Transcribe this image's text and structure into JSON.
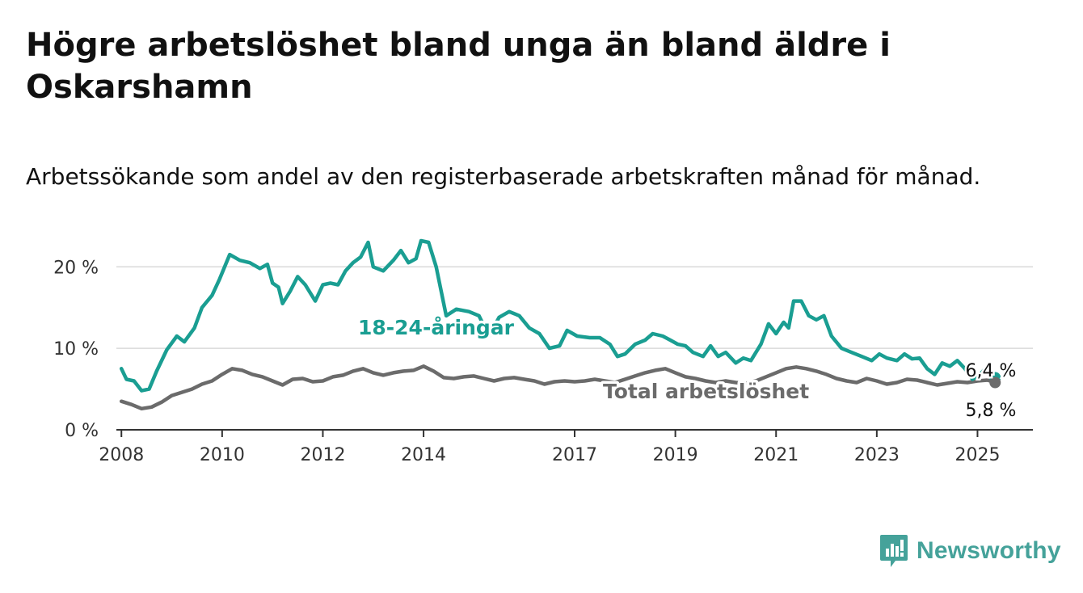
{
  "header": {
    "title": "Högre arbetslöshet bland unga än bland äldre i Oskarshamn",
    "subtitle": "Arbetssökande som andel av den registerbaserade arbetskraften månad för månad."
  },
  "brand": {
    "name": "Newsworthy",
    "icon": "newsworthy-logo-icon",
    "color": "#45a29a"
  },
  "chart_data": {
    "type": "line",
    "title": "Högre arbetslöshet bland unga än bland äldre i Oskarshamn",
    "subtitle": "Arbetssökande som andel av den registerbaserade arbetskraften månad för månad.",
    "xlabel": "",
    "ylabel": "",
    "xlim": [
      2007.9,
      2026.1
    ],
    "ylim": [
      0,
      23
    ],
    "grid": true,
    "x_ticks": [
      {
        "value": 2008,
        "label": "2008"
      },
      {
        "value": 2010,
        "label": "2010"
      },
      {
        "value": 2012,
        "label": "2012"
      },
      {
        "value": 2014,
        "label": "2014"
      },
      {
        "value": 2017,
        "label": "2017"
      },
      {
        "value": 2019,
        "label": "2019"
      },
      {
        "value": 2021,
        "label": "2021"
      },
      {
        "value": 2023,
        "label": "2023"
      },
      {
        "value": 2025,
        "label": "2025"
      }
    ],
    "y_ticks": [
      {
        "value": 0,
        "label": "0 %"
      },
      {
        "value": 10,
        "label": "10 %"
      },
      {
        "value": 20,
        "label": "20 %"
      }
    ],
    "series": [
      {
        "name": "18-24-åringar",
        "color": "#1a9e92",
        "end_label": "6,4 %",
        "points": [
          [
            2008.0,
            7.5
          ],
          [
            2008.1,
            6.2
          ],
          [
            2008.25,
            6.0
          ],
          [
            2008.4,
            4.8
          ],
          [
            2008.55,
            5.0
          ],
          [
            2008.7,
            7.2
          ],
          [
            2008.9,
            9.8
          ],
          [
            2009.1,
            11.5
          ],
          [
            2009.25,
            10.8
          ],
          [
            2009.45,
            12.5
          ],
          [
            2009.6,
            15.0
          ],
          [
            2009.8,
            16.5
          ],
          [
            2009.95,
            18.5
          ],
          [
            2010.15,
            21.5
          ],
          [
            2010.35,
            20.8
          ],
          [
            2010.55,
            20.5
          ],
          [
            2010.75,
            19.8
          ],
          [
            2010.9,
            20.3
          ],
          [
            2011.0,
            18.0
          ],
          [
            2011.12,
            17.5
          ],
          [
            2011.2,
            15.5
          ],
          [
            2011.35,
            17.0
          ],
          [
            2011.5,
            18.8
          ],
          [
            2011.65,
            17.8
          ],
          [
            2011.85,
            15.8
          ],
          [
            2012.0,
            17.8
          ],
          [
            2012.15,
            18.0
          ],
          [
            2012.3,
            17.8
          ],
          [
            2012.45,
            19.5
          ],
          [
            2012.6,
            20.5
          ],
          [
            2012.75,
            21.2
          ],
          [
            2012.9,
            23.0
          ],
          [
            2013.0,
            20.0
          ],
          [
            2013.2,
            19.5
          ],
          [
            2013.4,
            20.8
          ],
          [
            2013.55,
            22.0
          ],
          [
            2013.7,
            20.5
          ],
          [
            2013.85,
            21.0
          ],
          [
            2013.95,
            23.2
          ],
          [
            2014.1,
            23.0
          ],
          [
            2014.25,
            20.0
          ],
          [
            2014.45,
            14.0
          ],
          [
            2014.65,
            14.8
          ],
          [
            2014.9,
            14.5
          ],
          [
            2015.1,
            14.0
          ],
          [
            2015.3,
            11.5
          ],
          [
            2015.5,
            13.8
          ],
          [
            2015.7,
            14.5
          ],
          [
            2015.9,
            14.0
          ],
          [
            2016.1,
            12.5
          ],
          [
            2016.3,
            11.8
          ],
          [
            2016.5,
            10.0
          ],
          [
            2016.7,
            10.3
          ],
          [
            2016.85,
            12.2
          ],
          [
            2017.05,
            11.5
          ],
          [
            2017.3,
            11.3
          ],
          [
            2017.5,
            11.3
          ],
          [
            2017.7,
            10.5
          ],
          [
            2017.85,
            9.0
          ],
          [
            2018.0,
            9.3
          ],
          [
            2018.2,
            10.5
          ],
          [
            2018.4,
            11.0
          ],
          [
            2018.55,
            11.8
          ],
          [
            2018.75,
            11.5
          ],
          [
            2018.9,
            11.0
          ],
          [
            2019.05,
            10.5
          ],
          [
            2019.2,
            10.3
          ],
          [
            2019.35,
            9.5
          ],
          [
            2019.55,
            9.0
          ],
          [
            2019.7,
            10.3
          ],
          [
            2019.85,
            9.0
          ],
          [
            2020.0,
            9.5
          ],
          [
            2020.2,
            8.2
          ],
          [
            2020.35,
            8.8
          ],
          [
            2020.5,
            8.5
          ],
          [
            2020.7,
            10.5
          ],
          [
            2020.85,
            13.0
          ],
          [
            2021.0,
            11.8
          ],
          [
            2021.15,
            13.2
          ],
          [
            2021.25,
            12.5
          ],
          [
            2021.35,
            15.8
          ],
          [
            2021.5,
            15.8
          ],
          [
            2021.65,
            14.0
          ],
          [
            2021.8,
            13.5
          ],
          [
            2021.95,
            14.0
          ],
          [
            2022.1,
            11.5
          ],
          [
            2022.3,
            10.0
          ],
          [
            2022.5,
            9.5
          ],
          [
            2022.7,
            9.0
          ],
          [
            2022.9,
            8.5
          ],
          [
            2023.05,
            9.3
          ],
          [
            2023.2,
            8.8
          ],
          [
            2023.4,
            8.5
          ],
          [
            2023.55,
            9.3
          ],
          [
            2023.7,
            8.7
          ],
          [
            2023.85,
            8.8
          ],
          [
            2024.0,
            7.5
          ],
          [
            2024.15,
            6.8
          ],
          [
            2024.3,
            8.2
          ],
          [
            2024.45,
            7.8
          ],
          [
            2024.6,
            8.5
          ],
          [
            2024.75,
            7.5
          ],
          [
            2024.9,
            6.2
          ],
          [
            2025.05,
            6.8
          ],
          [
            2025.2,
            7.8
          ],
          [
            2025.35,
            6.4
          ]
        ]
      },
      {
        "name": "Total arbetslöshet",
        "color": "#6b6b6b",
        "end_label": "5,8 %",
        "points": [
          [
            2008.0,
            3.5
          ],
          [
            2008.2,
            3.1
          ],
          [
            2008.4,
            2.6
          ],
          [
            2008.6,
            2.8
          ],
          [
            2008.8,
            3.4
          ],
          [
            2009.0,
            4.2
          ],
          [
            2009.2,
            4.6
          ],
          [
            2009.4,
            5.0
          ],
          [
            2009.6,
            5.6
          ],
          [
            2009.8,
            6.0
          ],
          [
            2010.0,
            6.8
          ],
          [
            2010.2,
            7.5
          ],
          [
            2010.4,
            7.3
          ],
          [
            2010.6,
            6.8
          ],
          [
            2010.8,
            6.5
          ],
          [
            2011.0,
            6.0
          ],
          [
            2011.2,
            5.5
          ],
          [
            2011.4,
            6.2
          ],
          [
            2011.6,
            6.3
          ],
          [
            2011.8,
            5.9
          ],
          [
            2012.0,
            6.0
          ],
          [
            2012.2,
            6.5
          ],
          [
            2012.4,
            6.7
          ],
          [
            2012.6,
            7.2
          ],
          [
            2012.8,
            7.5
          ],
          [
            2013.0,
            7.0
          ],
          [
            2013.2,
            6.7
          ],
          [
            2013.4,
            7.0
          ],
          [
            2013.6,
            7.2
          ],
          [
            2013.8,
            7.3
          ],
          [
            2014.0,
            7.8
          ],
          [
            2014.2,
            7.2
          ],
          [
            2014.4,
            6.4
          ],
          [
            2014.6,
            6.3
          ],
          [
            2014.8,
            6.5
          ],
          [
            2015.0,
            6.6
          ],
          [
            2015.2,
            6.3
          ],
          [
            2015.4,
            6.0
          ],
          [
            2015.6,
            6.3
          ],
          [
            2015.8,
            6.4
          ],
          [
            2016.0,
            6.2
          ],
          [
            2016.2,
            6.0
          ],
          [
            2016.4,
            5.6
          ],
          [
            2016.6,
            5.9
          ],
          [
            2016.8,
            6.0
          ],
          [
            2017.0,
            5.9
          ],
          [
            2017.2,
            6.0
          ],
          [
            2017.4,
            6.2
          ],
          [
            2017.6,
            6.0
          ],
          [
            2017.8,
            5.8
          ],
          [
            2018.0,
            6.2
          ],
          [
            2018.2,
            6.6
          ],
          [
            2018.4,
            7.0
          ],
          [
            2018.6,
            7.3
          ],
          [
            2018.8,
            7.5
          ],
          [
            2019.0,
            7.0
          ],
          [
            2019.2,
            6.5
          ],
          [
            2019.4,
            6.3
          ],
          [
            2019.6,
            6.0
          ],
          [
            2019.8,
            5.8
          ],
          [
            2020.0,
            6.0
          ],
          [
            2020.2,
            5.8
          ],
          [
            2020.4,
            5.7
          ],
          [
            2020.6,
            6.0
          ],
          [
            2020.8,
            6.5
          ],
          [
            2021.0,
            7.0
          ],
          [
            2021.2,
            7.5
          ],
          [
            2021.4,
            7.7
          ],
          [
            2021.6,
            7.5
          ],
          [
            2021.8,
            7.2
          ],
          [
            2022.0,
            6.8
          ],
          [
            2022.2,
            6.3
          ],
          [
            2022.4,
            6.0
          ],
          [
            2022.6,
            5.8
          ],
          [
            2022.8,
            6.3
          ],
          [
            2023.0,
            6.0
          ],
          [
            2023.2,
            5.6
          ],
          [
            2023.4,
            5.8
          ],
          [
            2023.6,
            6.2
          ],
          [
            2023.8,
            6.1
          ],
          [
            2024.0,
            5.8
          ],
          [
            2024.2,
            5.5
          ],
          [
            2024.4,
            5.7
          ],
          [
            2024.6,
            5.9
          ],
          [
            2024.8,
            5.8
          ],
          [
            2025.0,
            6.0
          ],
          [
            2025.2,
            6.1
          ],
          [
            2025.35,
            5.8
          ]
        ]
      }
    ]
  }
}
